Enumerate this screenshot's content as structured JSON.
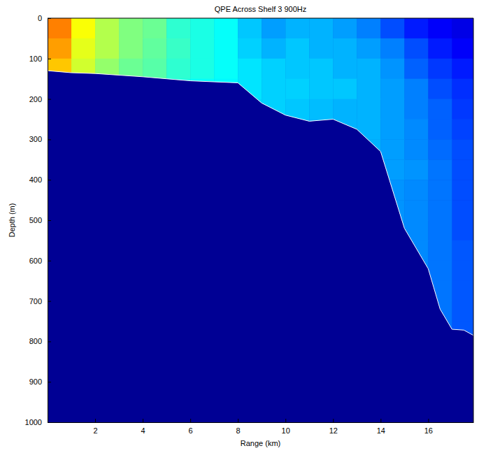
{
  "chart_data": {
    "type": "heatmap",
    "title": "QPE  Across Shelf 3  900Hz",
    "x_label": "Range (km)",
    "y_label": "Depth (m)",
    "xlim": [
      0,
      17.9
    ],
    "ylim": [
      0,
      1000
    ],
    "xticks": [
      2,
      4,
      6,
      8,
      10,
      12,
      14,
      16
    ],
    "yticks": [
      0,
      100,
      200,
      300,
      400,
      500,
      600,
      700,
      800,
      900,
      1000
    ],
    "tick_labels": true,
    "grid": false,
    "value_range": [
      0,
      1
    ],
    "cells": {
      "x_edges": [
        0,
        1,
        2,
        3,
        4,
        5,
        6,
        7,
        8,
        9,
        10,
        11,
        12,
        13,
        14,
        15,
        16,
        17,
        17.9
      ],
      "y_edges": [
        0,
        50,
        100,
        150,
        200,
        250,
        300,
        350,
        400,
        450,
        500,
        550,
        600,
        650,
        700,
        750,
        800
      ],
      "values": [
        [
          0.75,
          0.62,
          0.55,
          0.5,
          0.48,
          0.42,
          0.4,
          0.38,
          0.32,
          0.28,
          0.3,
          0.3,
          0.28,
          0.25,
          0.2,
          0.15,
          0.12,
          0.1
        ],
        [
          0.72,
          0.6,
          0.55,
          0.5,
          0.47,
          0.43,
          0.4,
          0.38,
          0.33,
          0.3,
          0.32,
          0.3,
          0.3,
          0.28,
          0.25,
          0.2,
          0.15,
          0.12
        ],
        [
          0.68,
          0.58,
          0.52,
          0.48,
          0.46,
          0.42,
          0.4,
          0.38,
          0.35,
          0.33,
          0.32,
          0.32,
          0.3,
          0.3,
          0.27,
          0.22,
          0.18,
          0.15
        ],
        [
          null,
          null,
          null,
          null,
          null,
          0.4,
          0.38,
          0.37,
          0.35,
          0.33,
          0.33,
          0.32,
          0.32,
          0.3,
          0.28,
          0.25,
          0.2,
          0.17
        ],
        [
          null,
          null,
          null,
          null,
          null,
          null,
          null,
          null,
          0.34,
          0.33,
          0.32,
          0.31,
          0.3,
          0.3,
          0.28,
          0.25,
          0.22,
          0.18
        ],
        [
          null,
          null,
          null,
          null,
          null,
          null,
          null,
          null,
          null,
          null,
          0.31,
          0.3,
          0.3,
          0.3,
          0.28,
          0.26,
          0.22,
          0.19
        ],
        [
          null,
          null,
          null,
          null,
          null,
          null,
          null,
          null,
          null,
          null,
          null,
          null,
          null,
          0.3,
          0.28,
          0.26,
          0.23,
          0.2
        ],
        [
          null,
          null,
          null,
          null,
          null,
          null,
          null,
          null,
          null,
          null,
          null,
          null,
          null,
          null,
          0.28,
          0.27,
          0.24,
          0.2
        ],
        [
          null,
          null,
          null,
          null,
          null,
          null,
          null,
          null,
          null,
          null,
          null,
          null,
          null,
          null,
          0.27,
          0.26,
          0.24,
          0.2
        ],
        [
          null,
          null,
          null,
          null,
          null,
          null,
          null,
          null,
          null,
          null,
          null,
          null,
          null,
          null,
          0.27,
          0.26,
          0.24,
          0.2
        ],
        [
          null,
          null,
          null,
          null,
          null,
          null,
          null,
          null,
          null,
          null,
          null,
          null,
          null,
          null,
          0.27,
          0.26,
          0.24,
          0.2
        ],
        [
          null,
          null,
          null,
          null,
          null,
          null,
          null,
          null,
          null,
          null,
          null,
          null,
          null,
          null,
          null,
          0.26,
          0.24,
          0.21
        ],
        [
          null,
          null,
          null,
          null,
          null,
          null,
          null,
          null,
          null,
          null,
          null,
          null,
          null,
          null,
          null,
          0.26,
          0.24,
          0.21
        ],
        [
          null,
          null,
          null,
          null,
          null,
          null,
          null,
          null,
          null,
          null,
          null,
          null,
          null,
          null,
          null,
          null,
          0.24,
          0.21
        ],
        [
          null,
          null,
          null,
          null,
          null,
          null,
          null,
          null,
          null,
          null,
          null,
          null,
          null,
          null,
          null,
          null,
          0.24,
          0.21
        ],
        [
          null,
          null,
          null,
          null,
          null,
          null,
          null,
          null,
          null,
          null,
          null,
          null,
          null,
          null,
          null,
          null,
          0.24,
          0.21
        ]
      ]
    },
    "bathymetry": {
      "range": [
        0,
        1,
        2,
        4,
        5,
        6,
        8,
        9,
        10,
        11,
        12,
        13,
        14,
        15,
        16,
        16.5,
        17,
        17.5,
        17.9
      ],
      "depth": [
        130,
        135,
        137,
        145,
        150,
        155,
        160,
        210,
        240,
        255,
        250,
        275,
        330,
        520,
        620,
        720,
        770,
        772,
        785
      ]
    }
  }
}
